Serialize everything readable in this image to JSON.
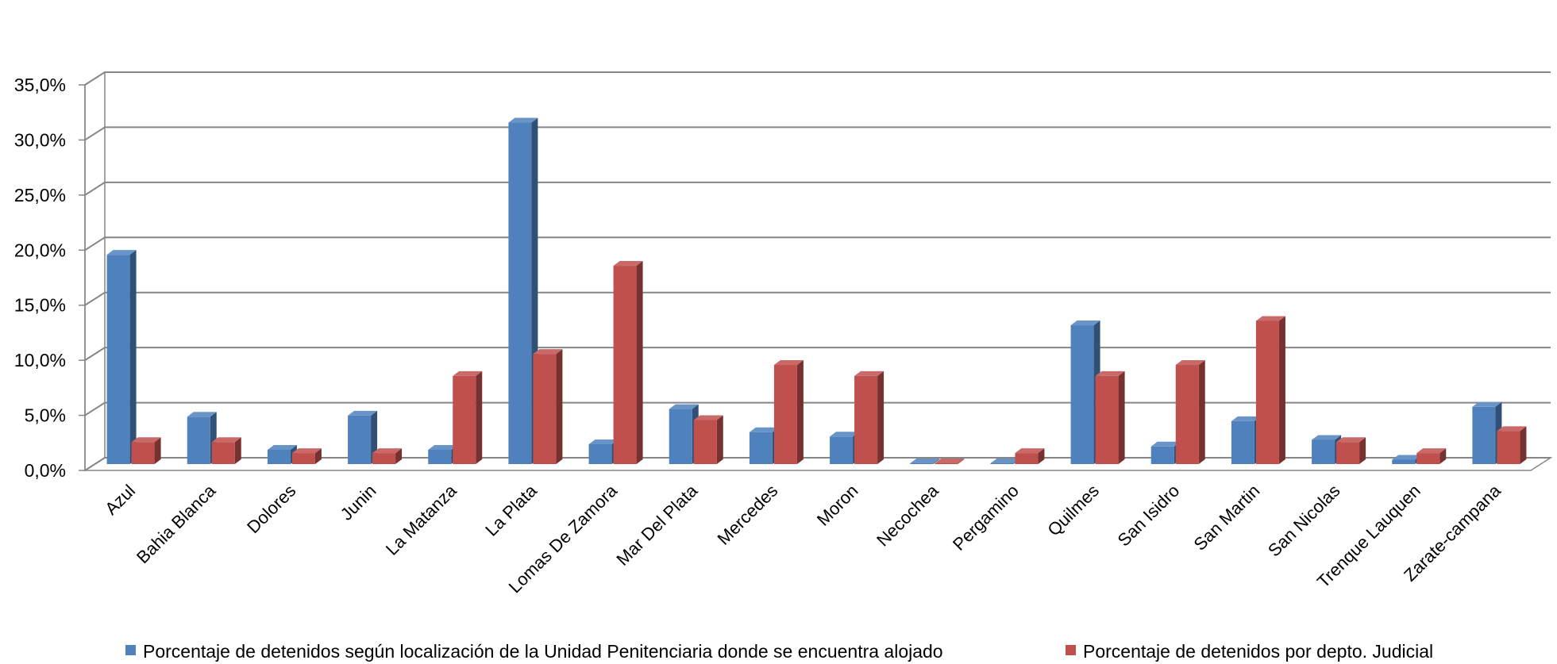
{
  "chart_data": {
    "type": "bar",
    "title": "",
    "xlabel": "",
    "ylabel": "",
    "ylim": [
      0,
      35
    ],
    "y_ticks": [
      "0,0%",
      "5,0%",
      "10,0%",
      "15,0%",
      "20,0%",
      "25,0%",
      "30,0%",
      "35,0%"
    ],
    "grid": true,
    "legend_position": "bottom",
    "three_d": true,
    "categories": [
      "Azul",
      "Bahia Blanca",
      "Dolores",
      "Junin",
      "La Matanza",
      "La Plata",
      "Lomas De Zamora",
      "Mar Del Plata",
      "Mercedes",
      "Moron",
      "Necochea",
      "Pergamino",
      "Quilmes",
      "San Isidro",
      "San Martin",
      "San Nicolas",
      "Trenque Lauquen",
      "Zarate-campana"
    ],
    "series": [
      {
        "name": "Porcentaje de detenidos según localización de la Unidad Penitenciaria donde se encuentra alojado",
        "color": "#4F81BD",
        "values": [
          19.0,
          4.3,
          1.3,
          4.4,
          1.3,
          31.0,
          1.8,
          5.0,
          2.9,
          2.5,
          0.0,
          0.0,
          12.6,
          1.6,
          3.9,
          2.2,
          0.4,
          5.2
        ]
      },
      {
        "name": "Porcentaje de detenidos por depto. Judicial",
        "color": "#C0504D",
        "values": [
          2.0,
          2.0,
          1.0,
          1.0,
          8.0,
          10.0,
          18.0,
          4.0,
          9.0,
          8.0,
          0.0,
          1.0,
          8.0,
          9.0,
          13.0,
          2.0,
          1.0,
          3.0
        ]
      }
    ]
  }
}
